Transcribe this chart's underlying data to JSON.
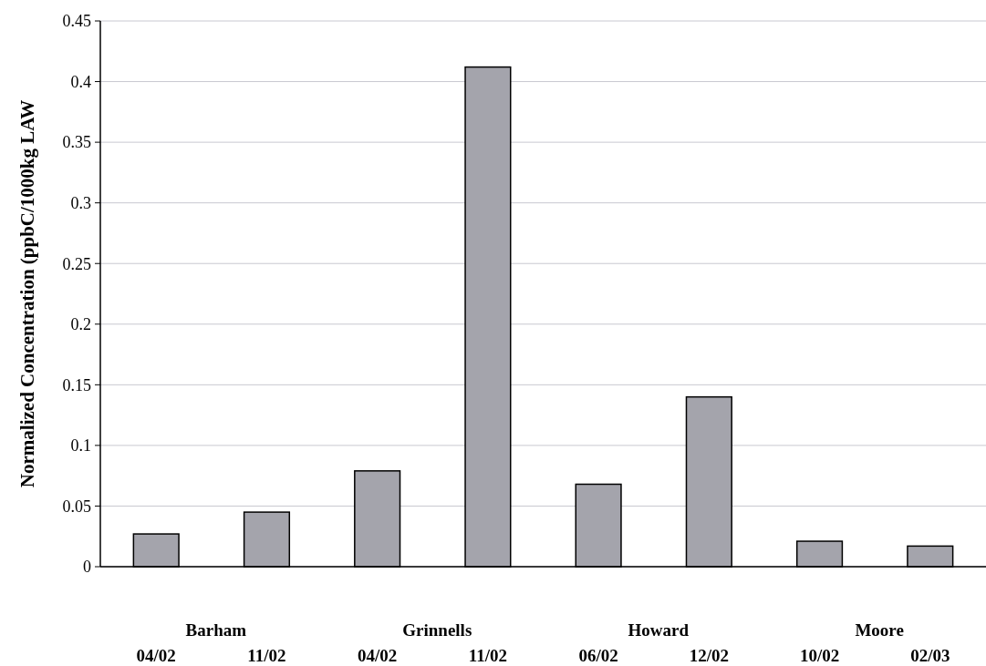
{
  "chart_data": {
    "type": "bar",
    "ylabel": "Normalized Concentration (ppbC/1000kg LAW",
    "categories": [
      "04/02",
      "11/02",
      "04/02",
      "11/02",
      "06/02",
      "12/02",
      "10/02",
      "02/03"
    ],
    "values": [
      0.027,
      0.045,
      0.079,
      0.412,
      0.068,
      0.14,
      0.021,
      0.017
    ],
    "color": "#a4a4ac",
    "annotations": [
      "Barham",
      "Grinnells",
      "Howard",
      "Moore"
    ],
    "ylim": [
      0,
      0.45
    ],
    "yticks": [
      0,
      0.05,
      0.1,
      0.15,
      0.2,
      0.25,
      0.3,
      0.35,
      0.4,
      0.45
    ],
    "grid": "y"
  }
}
